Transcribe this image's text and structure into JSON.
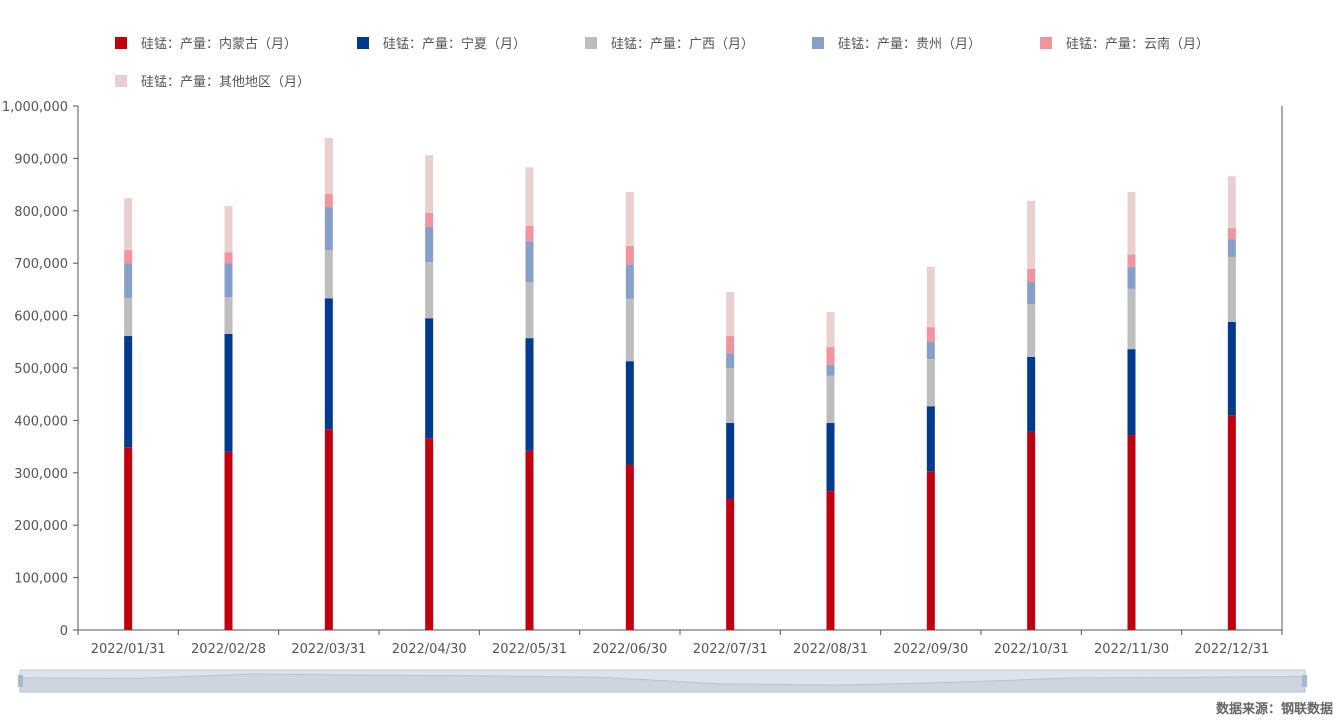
{
  "chart_data": {
    "type": "bar",
    "stacked": true,
    "title": "",
    "xlabel": "",
    "ylabel": "",
    "ylim": [
      0,
      1000000
    ],
    "yticks": [
      "0",
      "100,000",
      "200,000",
      "300,000",
      "400,000",
      "500,000",
      "600,000",
      "700,000",
      "800,000",
      "900,000",
      "1,000,000"
    ],
    "categories": [
      "2022/01/31",
      "2022/02/28",
      "2022/03/31",
      "2022/04/30",
      "2022/05/31",
      "2022/06/30",
      "2022/07/31",
      "2022/08/31",
      "2022/09/30",
      "2022/10/31",
      "2022/11/30",
      "2022/12/31"
    ],
    "legend_position": "top",
    "series": [
      {
        "name": "硅锰：产量：内蒙古（月）",
        "color": "#c00010",
        "values": [
          349000,
          340000,
          383000,
          366000,
          342000,
          315000,
          250000,
          265000,
          303000,
          378000,
          372000,
          410000
        ]
      },
      {
        "name": "硅锰：产量：宁夏（月）",
        "color": "#003a8c",
        "values": [
          212000,
          225000,
          250000,
          229000,
          215000,
          198000,
          145000,
          130000,
          124000,
          143000,
          164000,
          178000
        ]
      },
      {
        "name": "硅锰：产量：广西（月）",
        "color": "#bdbdbd",
        "values": [
          72000,
          70000,
          92000,
          107000,
          107000,
          119000,
          105000,
          90000,
          90000,
          101000,
          115000,
          124000
        ]
      },
      {
        "name": "硅锰：产量：贵州（月）",
        "color": "#87a0c8",
        "values": [
          67000,
          65000,
          82000,
          67000,
          78000,
          66000,
          28000,
          21000,
          34000,
          42000,
          42000,
          34000
        ]
      },
      {
        "name": "硅锰：产量：云南（月）",
        "color": "#f0959f",
        "values": [
          25000,
          21000,
          25000,
          27000,
          29000,
          35000,
          33000,
          34000,
          27000,
          25000,
          24000,
          21000
        ]
      },
      {
        "name": "硅锰：产量：其他地区（月）",
        "color": "#e8d0d0",
        "values": [
          99000,
          88000,
          107000,
          110000,
          112000,
          103000,
          84000,
          67000,
          115000,
          130000,
          119000,
          99000
        ]
      }
    ]
  },
  "source": "数据来源：钢联数据"
}
